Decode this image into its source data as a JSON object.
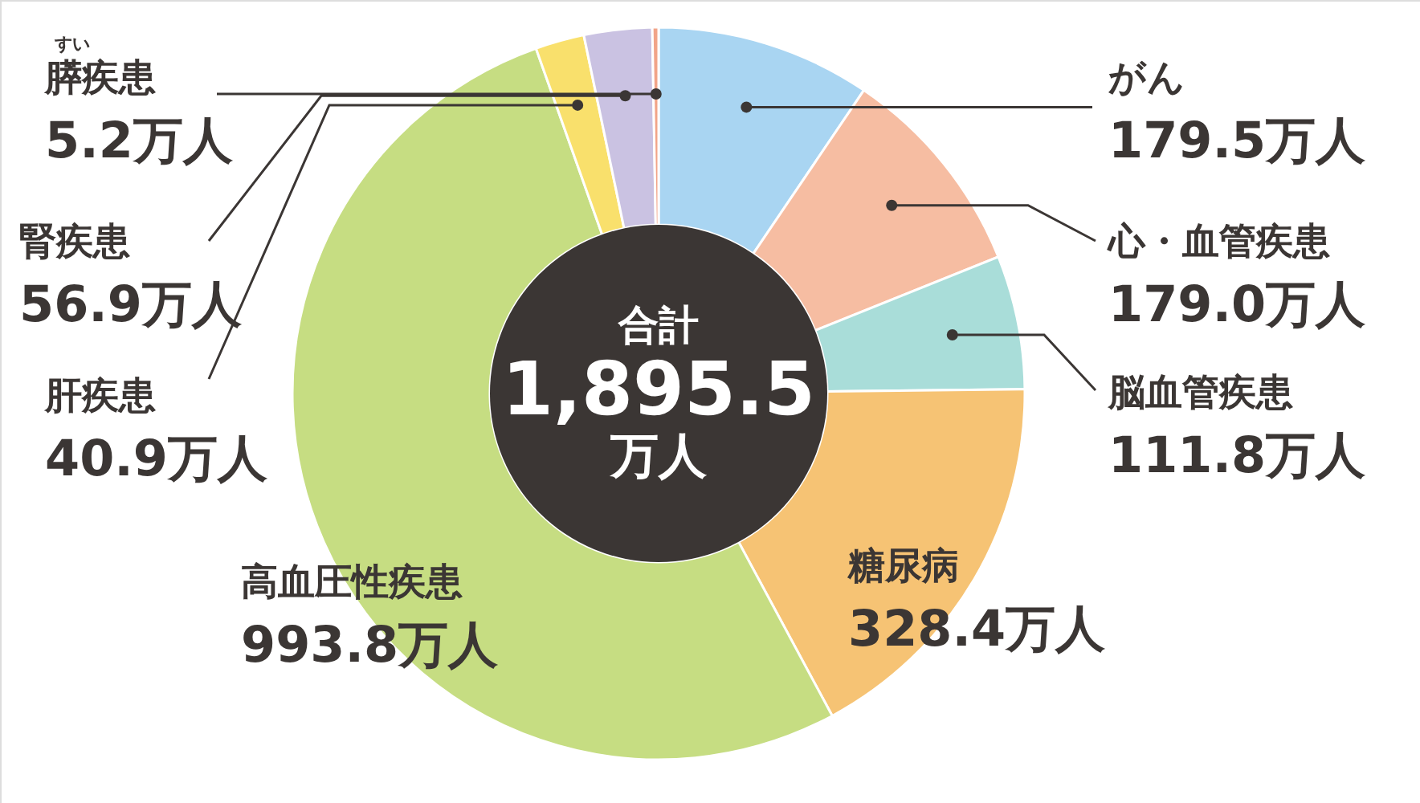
{
  "chart_data": {
    "type": "donut",
    "categories": [
      "がん",
      "心・血管疾患",
      "脳血管疾患",
      "糖尿病",
      "高血圧性疾患",
      "肝疾患",
      "腎疾患",
      "膵疾患"
    ],
    "values": [
      179.5,
      179.0,
      111.8,
      328.4,
      993.8,
      40.9,
      56.9,
      5.2
    ],
    "colors": [
      "#a9d5f2",
      "#f6bda2",
      "#a9ddd9",
      "#f6c374",
      "#c6dd82",
      "#f9e06c",
      "#cac2e2",
      "#f1a488"
    ],
    "value_labels": [
      "179.5万人",
      "179.0万人",
      "111.8万人",
      "328.4万人",
      "993.8万人",
      "40.9万人",
      "56.9万人",
      "5.2万人"
    ],
    "annotations": [
      "すい",
      "合計",
      "1,895.5",
      "万人"
    ]
  }
}
